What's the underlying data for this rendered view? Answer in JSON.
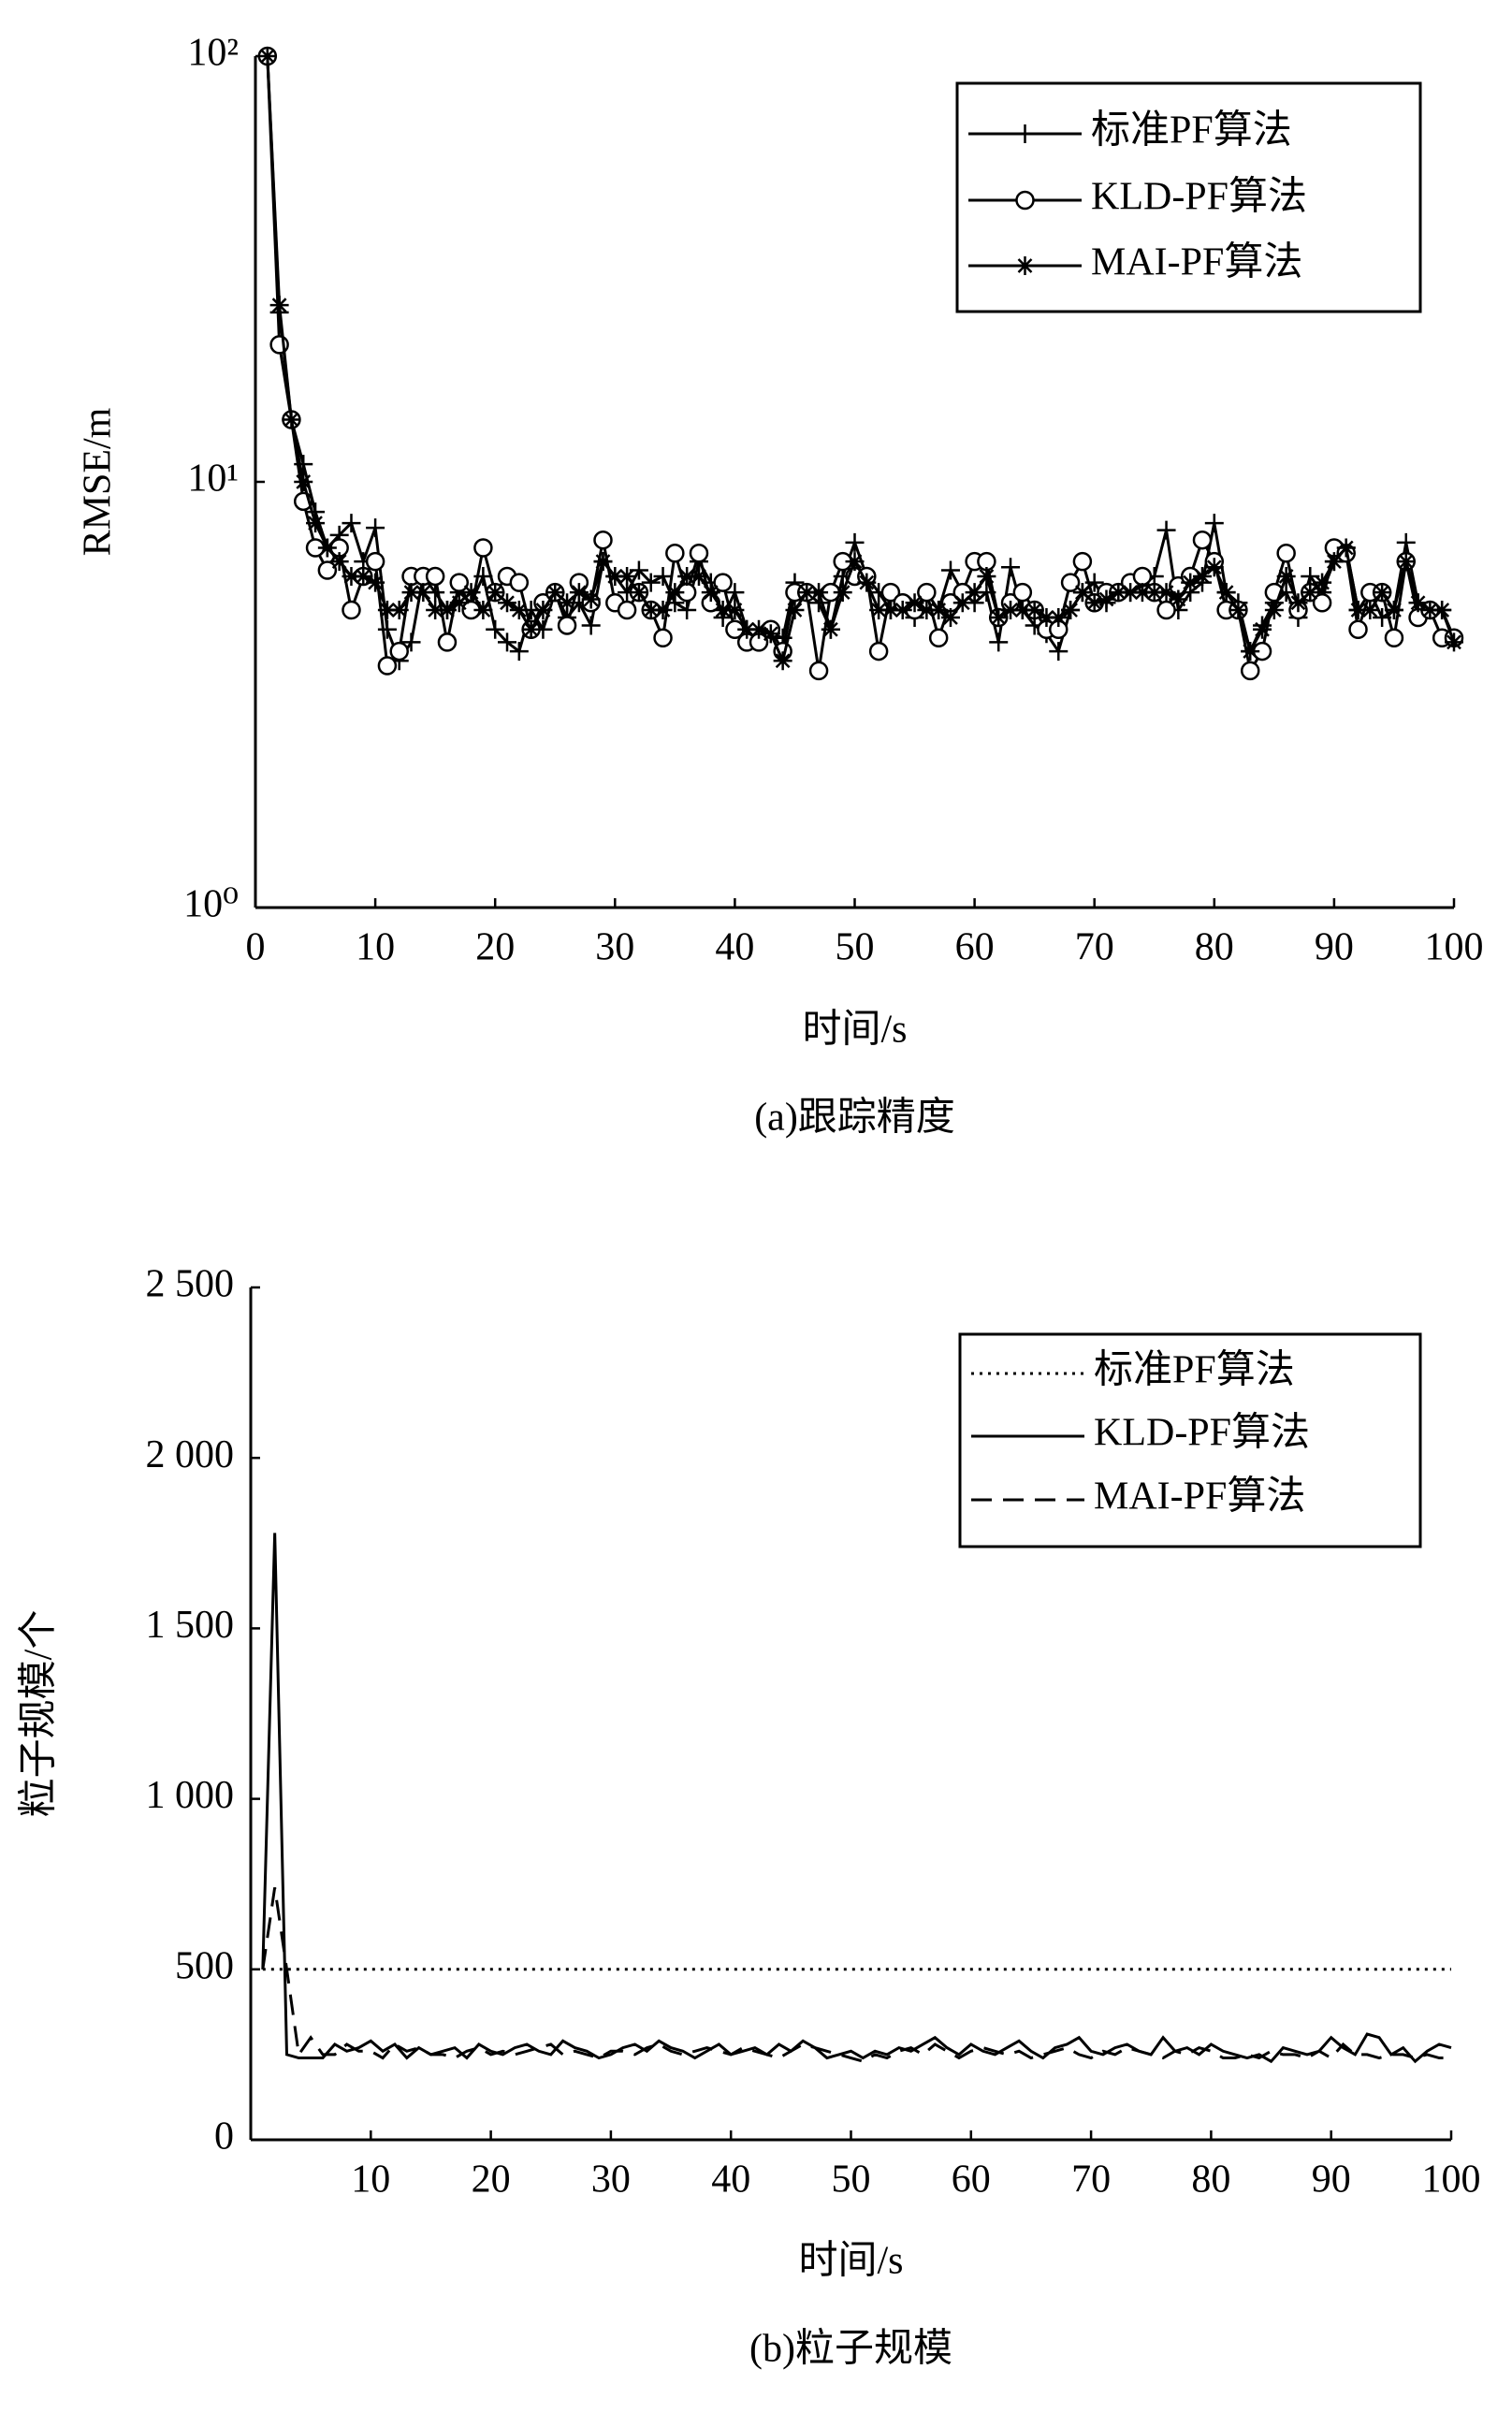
{
  "chart_data": [
    {
      "type": "line",
      "yscale": "log",
      "xlabel": "时间/s",
      "ylabel": "RMSE/m",
      "caption": "(a)跟踪精度",
      "xlim": [
        0,
        100
      ],
      "xticks": [
        0,
        10,
        20,
        30,
        40,
        50,
        60,
        70,
        80,
        90,
        100
      ],
      "ylim": [
        1,
        100
      ],
      "yticks": [
        {
          "value": 1,
          "label": "10⁰"
        },
        {
          "value": 10,
          "label": "10¹"
        },
        {
          "value": 100,
          "label": "10²"
        }
      ],
      "legend": "upper right",
      "x": [
        1,
        2,
        3,
        4,
        5,
        6,
        7,
        8,
        9,
        10,
        11,
        12,
        13,
        14,
        15,
        16,
        17,
        18,
        19,
        20,
        21,
        22,
        23,
        24,
        25,
        26,
        27,
        28,
        29,
        30,
        31,
        32,
        33,
        34,
        35,
        36,
        37,
        38,
        39,
        40,
        41,
        42,
        43,
        44,
        45,
        46,
        47,
        48,
        49,
        50,
        51,
        52,
        53,
        54,
        55,
        56,
        57,
        58,
        59,
        60,
        61,
        62,
        63,
        64,
        65,
        66,
        67,
        68,
        69,
        70,
        71,
        72,
        73,
        74,
        75,
        76,
        77,
        78,
        79,
        80,
        81,
        82,
        83,
        84,
        85,
        86,
        87,
        88,
        89,
        90,
        91,
        92,
        93,
        94,
        95,
        96,
        97,
        98,
        99,
        100
      ],
      "series": [
        {
          "name": "标准PF算法",
          "color": "#000000",
          "line_style": "solid",
          "marker": "plus",
          "values": [
            100,
            25,
            14,
            11,
            8.5,
            7,
            7.5,
            8,
            6.5,
            7.8,
            4.5,
            3.8,
            4.2,
            6,
            5.5,
            5,
            5.5,
            5.2,
            6,
            4.5,
            4.2,
            4,
            5,
            4.5,
            5.5,
            4.8,
            5.2,
            4.6,
            6.5,
            6,
            5.5,
            6.2,
            5.8,
            6,
            5.2,
            5,
            6.5,
            5.8,
            4.8,
            5.5,
            4.5,
            4.2,
            4.4,
            4.3,
            5.8,
            5.5,
            5.2,
            4.5,
            6,
            7.2,
            6,
            5.5,
            5,
            5.2,
            4.8,
            5.5,
            5,
            6.2,
            5.5,
            5.2,
            5.5,
            4.2,
            6.3,
            5,
            4.6,
            4.4,
            4,
            5,
            5.5,
            5.8,
            5.2,
            5.5,
            5.5,
            5.7,
            6,
            7.7,
            5,
            5.5,
            5.8,
            8,
            5.5,
            5.2,
            4,
            4.6,
            5.2,
            5.5,
            4.8,
            6,
            5.5,
            6.5,
            7,
            5,
            5.5,
            4.8,
            5,
            7.2,
            5.2,
            5,
            5,
            4.3
          ]
        },
        {
          "name": "KLD-PF算法",
          "color": "#000000",
          "line_style": "solid",
          "marker": "circle",
          "values": [
            100,
            21,
            14,
            9,
            7,
            6.2,
            7,
            5,
            6,
            6.5,
            3.7,
            4,
            6,
            6,
            6,
            4.2,
            5.8,
            5,
            7,
            5.5,
            6,
            5.8,
            4.5,
            5.2,
            5.5,
            4.6,
            5.8,
            5.2,
            7.3,
            5.2,
            5,
            5.5,
            5,
            4.3,
            6.8,
            5.5,
            6.8,
            5.2,
            5.8,
            4.5,
            4.2,
            4.2,
            4.5,
            4,
            5.5,
            5.5,
            3.6,
            5.5,
            6.5,
            6,
            6,
            4,
            5.5,
            5.2,
            5,
            5.5,
            4.3,
            5.2,
            5.5,
            6.5,
            6.5,
            4.8,
            5.2,
            5.5,
            5,
            4.5,
            4.5,
            5.8,
            6.5,
            5.2,
            5.5,
            5.5,
            5.8,
            6,
            5.5,
            5,
            5.7,
            6,
            7.3,
            6.5,
            5,
            5,
            3.6,
            4,
            5.5,
            6.8,
            5,
            5.5,
            5.2,
            7,
            6.8,
            4.5,
            5.5,
            5.5,
            4.3,
            6.5,
            4.8,
            5,
            4.3,
            4.3
          ]
        },
        {
          "name": "MAI-PF算法",
          "color": "#000000",
          "line_style": "solid",
          "marker": "asterisk",
          "values": [
            100,
            26,
            14,
            10,
            8,
            7,
            6.5,
            6,
            6,
            5.8,
            5,
            5,
            5.5,
            5.5,
            5,
            5,
            5.2,
            5.5,
            5,
            5.5,
            5.2,
            5,
            4.5,
            5,
            5.5,
            5.2,
            5.5,
            5.3,
            6.5,
            6,
            6,
            5.5,
            5,
            5,
            5.5,
            6,
            6,
            5.5,
            5,
            5,
            4.5,
            4.5,
            4.4,
            3.8,
            5,
            5.5,
            5.5,
            4.5,
            5.5,
            6.5,
            5.8,
            5,
            5,
            5,
            5.2,
            5,
            5,
            4.8,
            5.2,
            5.5,
            6,
            4.8,
            5,
            5,
            5,
            4.8,
            4.8,
            5,
            5.5,
            5.2,
            5.3,
            5.5,
            5.5,
            5.5,
            5.5,
            5.5,
            5.3,
            5.8,
            6,
            6.3,
            5.5,
            5,
            4,
            4.5,
            5,
            6,
            5.2,
            5.5,
            5.8,
            6.5,
            7,
            5,
            5,
            5.5,
            5,
            6.5,
            5.2,
            5,
            5,
            4.2
          ]
        }
      ]
    },
    {
      "type": "line",
      "xlabel": "时间/s",
      "ylabel": "粒子规模/个",
      "caption": "(b)粒子规模",
      "xlim": [
        0,
        100
      ],
      "xticks": [
        10,
        20,
        30,
        40,
        50,
        60,
        70,
        80,
        90,
        100
      ],
      "ylim": [
        0,
        2500
      ],
      "yticks": [
        0,
        500,
        {
          "value": 1000,
          "label": "1 000"
        },
        {
          "value": 1500,
          "label": "1 500"
        },
        {
          "value": 2000,
          "label": "2 000"
        },
        {
          "value": 2500,
          "label": "2 500"
        }
      ],
      "legend": "upper right",
      "x": [
        1,
        2,
        3,
        4,
        5,
        6,
        7,
        8,
        9,
        10,
        11,
        12,
        13,
        14,
        15,
        16,
        17,
        18,
        19,
        20,
        21,
        22,
        23,
        24,
        25,
        26,
        27,
        28,
        29,
        30,
        31,
        32,
        33,
        34,
        35,
        36,
        37,
        38,
        39,
        40,
        41,
        42,
        43,
        44,
        45,
        46,
        47,
        48,
        49,
        50,
        51,
        52,
        53,
        54,
        55,
        56,
        57,
        58,
        59,
        60,
        61,
        62,
        63,
        64,
        65,
        66,
        67,
        68,
        69,
        70,
        71,
        72,
        73,
        74,
        75,
        76,
        77,
        78,
        79,
        80,
        81,
        82,
        83,
        84,
        85,
        86,
        87,
        88,
        89,
        90,
        91,
        92,
        93,
        94,
        95,
        96,
        97,
        98,
        99,
        100
      ],
      "series": [
        {
          "name": "标准PF算法",
          "color": "#000000",
          "line_style": "dotted",
          "values": [
            500,
            500,
            500,
            500,
            500,
            500,
            500,
            500,
            500,
            500,
            500,
            500,
            500,
            500,
            500,
            500,
            500,
            500,
            500,
            500,
            500,
            500,
            500,
            500,
            500,
            500,
            500,
            500,
            500,
            500,
            500,
            500,
            500,
            500,
            500,
            500,
            500,
            500,
            500,
            500,
            500,
            500,
            500,
            500,
            500,
            500,
            500,
            500,
            500,
            500,
            500,
            500,
            500,
            500,
            500,
            500,
            500,
            500,
            500,
            500,
            500,
            500,
            500,
            500,
            500,
            500,
            500,
            500,
            500,
            500,
            500,
            500,
            500,
            500,
            500,
            500,
            500,
            500,
            500,
            500,
            500,
            500,
            500,
            500,
            500,
            500,
            500,
            500,
            500,
            500,
            500,
            500,
            500,
            500,
            500,
            500,
            500,
            500,
            500,
            500
          ]
        },
        {
          "name": "KLD-PF算法",
          "color": "#000000",
          "line_style": "solid",
          "values": [
            500,
            1780,
            250,
            240,
            240,
            240,
            280,
            260,
            270,
            290,
            260,
            280,
            240,
            270,
            250,
            260,
            270,
            240,
            280,
            260,
            250,
            270,
            280,
            260,
            250,
            290,
            270,
            260,
            240,
            250,
            270,
            280,
            260,
            290,
            270,
            260,
            240,
            260,
            280,
            250,
            260,
            270,
            250,
            280,
            260,
            290,
            270,
            240,
            250,
            260,
            240,
            260,
            250,
            270,
            260,
            280,
            300,
            270,
            250,
            280,
            260,
            250,
            270,
            290,
            260,
            240,
            270,
            280,
            300,
            260,
            250,
            270,
            280,
            260,
            250,
            300,
            260,
            270,
            250,
            280,
            260,
            250,
            240,
            250,
            230,
            270,
            260,
            250,
            260,
            300,
            270,
            250,
            310,
            300,
            250,
            270,
            230,
            260,
            280,
            270
          ]
        },
        {
          "name": "MAI-PF算法",
          "color": "#000000",
          "line_style": "dashed",
          "values": [
            500,
            740,
            500,
            250,
            300,
            250,
            250,
            280,
            260,
            260,
            240,
            280,
            260,
            270,
            250,
            250,
            240,
            260,
            270,
            250,
            260,
            250,
            260,
            270,
            280,
            250,
            260,
            250,
            240,
            260,
            260,
            250,
            270,
            280,
            260,
            250,
            260,
            270,
            260,
            250,
            270,
            260,
            250,
            240,
            260,
            280,
            270,
            260,
            250,
            240,
            230,
            250,
            240,
            260,
            270,
            250,
            280,
            260,
            240,
            260,
            270,
            260,
            250,
            260,
            240,
            250,
            260,
            270,
            250,
            240,
            260,
            250,
            270,
            260,
            250,
            240,
            260,
            250,
            270,
            260,
            240,
            240,
            250,
            240,
            260,
            250,
            250,
            240,
            260,
            240,
            280,
            250,
            250,
            240,
            250,
            250,
            240,
            250,
            240,
            240
          ]
        }
      ]
    }
  ]
}
